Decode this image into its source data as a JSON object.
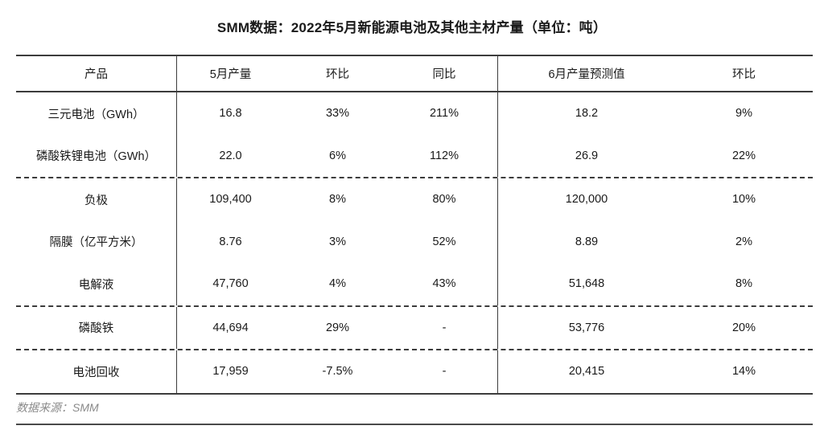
{
  "title": "SMM数据：2022年5月新能源电池及其他主材产量（单位：吨）",
  "source_note": "数据来源：SMM",
  "colors": {
    "text": "#1a1a1a",
    "line": "#3c3c3c",
    "muted_text": "#8a8a8a",
    "background": "#ffffff"
  },
  "chart_data": {
    "type": "table",
    "title": "SMM数据：2022年5月新能源电池及其他主材产量（单位：吨）",
    "columns": [
      "产品",
      "5月产量",
      "环比",
      "同比",
      "6月产量预测值",
      "环比"
    ],
    "groups": [
      {
        "rows": [
          [
            "三元电池（GWh）",
            "16.8",
            "33%",
            "211%",
            "18.2",
            "9%"
          ],
          [
            "磷酸铁锂电池（GWh）",
            "22.0",
            "6%",
            "112%",
            "26.9",
            "22%"
          ]
        ]
      },
      {
        "rows": [
          [
            "负极",
            "109,400",
            "8%",
            "80%",
            "120,000",
            "10%"
          ],
          [
            "隔膜（亿平方米）",
            "8.76",
            "3%",
            "52%",
            "8.89",
            "2%"
          ],
          [
            "电解液",
            "47,760",
            "4%",
            "43%",
            "51,648",
            "8%"
          ]
        ]
      },
      {
        "rows": [
          [
            "磷酸铁",
            "44,694",
            "29%",
            "-",
            "53,776",
            "20%"
          ]
        ]
      },
      {
        "rows": [
          [
            "电池回收",
            "17,959",
            "-7.5%",
            "-",
            "20,415",
            "14%"
          ]
        ]
      }
    ],
    "source": "数据来源：SMM"
  }
}
